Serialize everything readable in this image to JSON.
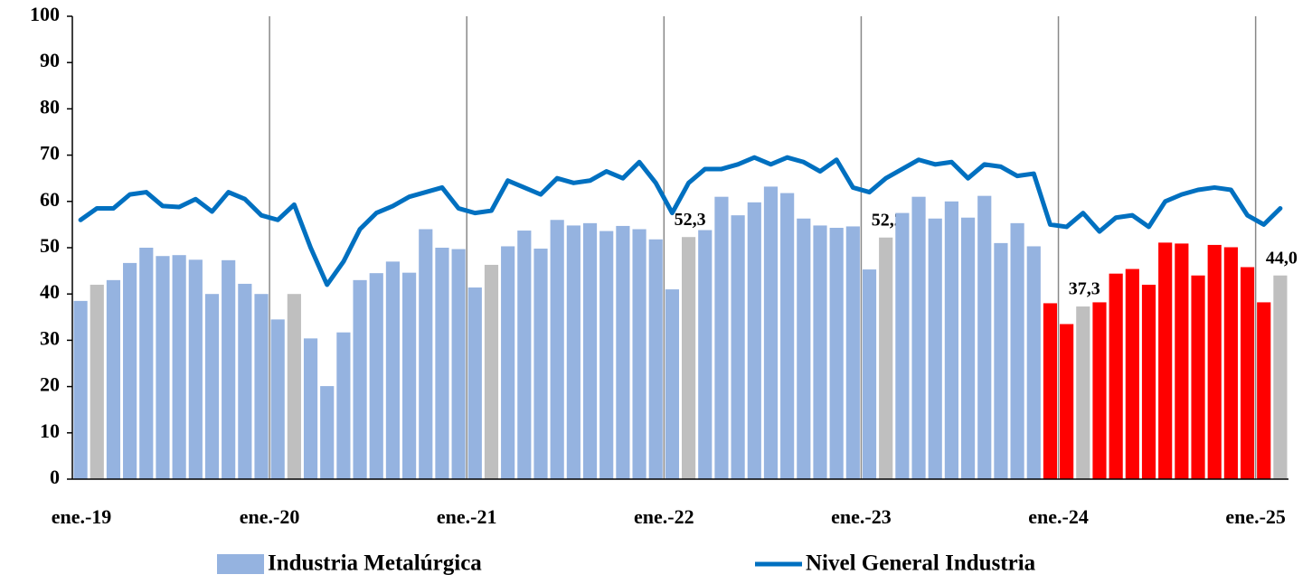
{
  "chart_data": {
    "type": "bar",
    "categories": [
      "ene.-19",
      null,
      null,
      null,
      null,
      null,
      null,
      null,
      null,
      null,
      null,
      null,
      "ene.-20",
      null,
      null,
      null,
      null,
      null,
      null,
      null,
      null,
      null,
      null,
      null,
      "ene.-21",
      null,
      null,
      null,
      null,
      null,
      null,
      null,
      null,
      null,
      null,
      null,
      "ene.-22",
      null,
      null,
      null,
      null,
      null,
      null,
      null,
      null,
      null,
      null,
      null,
      "ene.-23",
      null,
      null,
      null,
      null,
      null,
      null,
      null,
      null,
      null,
      null,
      null,
      "ene.-24",
      null,
      null,
      null,
      null,
      null,
      null,
      null,
      null,
      null,
      null,
      null,
      "ene.-25",
      null
    ],
    "series": [
      {
        "name": "Industria Metalúrgica",
        "type": "bar",
        "color": "#95b3e0",
        "colors": [
          "#95b3e0",
          "#bfbfbf",
          "#95b3e0",
          "#95b3e0",
          "#95b3e0",
          "#95b3e0",
          "#95b3e0",
          "#95b3e0",
          "#95b3e0",
          "#95b3e0",
          "#95b3e0",
          "#95b3e0",
          "#95b3e0",
          "#bfbfbf",
          "#95b3e0",
          "#95b3e0",
          "#95b3e0",
          "#95b3e0",
          "#95b3e0",
          "#95b3e0",
          "#95b3e0",
          "#95b3e0",
          "#95b3e0",
          "#95b3e0",
          "#95b3e0",
          "#bfbfbf",
          "#95b3e0",
          "#95b3e0",
          "#95b3e0",
          "#95b3e0",
          "#95b3e0",
          "#95b3e0",
          "#95b3e0",
          "#95b3e0",
          "#95b3e0",
          "#95b3e0",
          "#95b3e0",
          "#bfbfbf",
          "#95b3e0",
          "#95b3e0",
          "#95b3e0",
          "#95b3e0",
          "#95b3e0",
          "#95b3e0",
          "#95b3e0",
          "#95b3e0",
          "#95b3e0",
          "#95b3e0",
          "#95b3e0",
          "#bfbfbf",
          "#95b3e0",
          "#95b3e0",
          "#95b3e0",
          "#95b3e0",
          "#95b3e0",
          "#95b3e0",
          "#95b3e0",
          "#95b3e0",
          "#95b3e0",
          "#ff0000",
          "#ff0000",
          "#bfbfbf",
          "#ff0000",
          "#ff0000",
          "#ff0000",
          "#ff0000",
          "#ff0000",
          "#ff0000",
          "#ff0000",
          "#ff0000",
          "#ff0000",
          "#ff0000",
          "#ff0000",
          "#bfbfbf"
        ],
        "values": [
          38.5,
          42,
          43,
          46.7,
          50,
          48.2,
          48.4,
          47.4,
          40,
          47.3,
          42.2,
          40,
          34.5,
          40,
          30.4,
          20.1,
          31.7,
          43,
          44.5,
          47,
          44.6,
          54,
          50,
          49.7,
          41.4,
          46.3,
          50.3,
          53.7,
          49.8,
          56,
          54.8,
          55.3,
          53.6,
          54.7,
          54,
          51.8,
          41,
          52.3,
          53.8,
          61,
          57,
          59.8,
          63.2,
          61.8,
          56.3,
          54.8,
          54.3,
          54.6,
          45.3,
          52.2,
          57.5,
          61,
          56.3,
          60,
          56.5,
          61.2,
          51,
          55.3,
          50.3,
          38,
          33.5,
          37.3,
          38.2,
          44.4,
          45.4,
          42,
          51.1,
          50.9,
          44,
          50.6,
          50.1,
          45.8,
          38.2,
          44
        ],
        "value_labels": [
          null,
          null,
          null,
          null,
          null,
          null,
          null,
          null,
          null,
          null,
          null,
          null,
          null,
          null,
          null,
          null,
          null,
          null,
          null,
          null,
          null,
          null,
          null,
          null,
          null,
          null,
          null,
          null,
          null,
          null,
          null,
          null,
          null,
          null,
          null,
          null,
          null,
          "52,3",
          null,
          null,
          null,
          null,
          null,
          null,
          null,
          null,
          null,
          null,
          null,
          "52,2",
          null,
          null,
          null,
          null,
          null,
          null,
          null,
          null,
          null,
          null,
          null,
          "37,3",
          null,
          null,
          null,
          null,
          null,
          null,
          null,
          null,
          null,
          null,
          null,
          "44,0"
        ]
      },
      {
        "name": "Nivel General Industria",
        "type": "line",
        "color": "#0070c0",
        "values": [
          56,
          58.5,
          58.5,
          61.5,
          62,
          59,
          58.8,
          60.5,
          57.8,
          62,
          60.5,
          57,
          56,
          59.3,
          50,
          42,
          47,
          54,
          57.5,
          59,
          61,
          62,
          63,
          58.5,
          57.5,
          58,
          64.5,
          63,
          61.5,
          65,
          64,
          64.5,
          66.5,
          65,
          68.5,
          64,
          57.5,
          64,
          67,
          67,
          68,
          69.5,
          68,
          69.5,
          68.5,
          66.5,
          69,
          63,
          62,
          65,
          67,
          69,
          68,
          68.5,
          65,
          68,
          67.5,
          65.5,
          66,
          55,
          54.5,
          57.5,
          53.5,
          56.5,
          57,
          54.5,
          60,
          61.5,
          62.5,
          63,
          62.5,
          57,
          55,
          58.5
        ]
      }
    ],
    "ylim": [
      0,
      100
    ],
    "yticks": [
      0,
      10,
      20,
      30,
      40,
      50,
      60,
      70,
      80,
      90,
      100
    ],
    "grid": false,
    "legend": "bottom"
  }
}
